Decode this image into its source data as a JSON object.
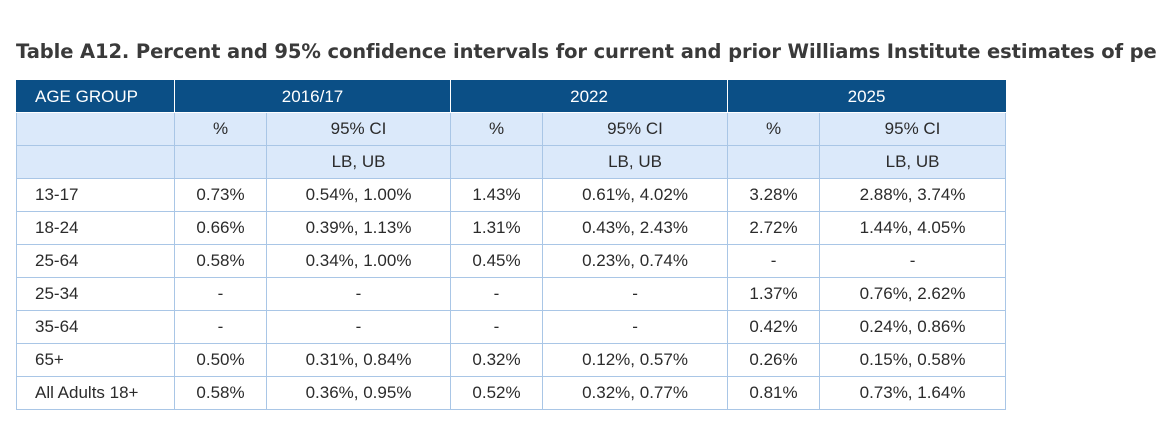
{
  "title": "Table A12. Percent and 95% confidence intervals for current and prior Williams Institute estimates of pe",
  "table": {
    "header": {
      "age_group": "AGE GROUP",
      "periods": [
        "2016/17",
        "2022",
        "2025"
      ]
    },
    "subheader": {
      "percent": "%",
      "ci": "95% CI",
      "bounds": "LB, UB"
    },
    "rows": [
      [
        "13-17",
        "0.73%",
        "0.54%, 1.00%",
        "1.43%",
        "0.61%, 4.02%",
        "3.28%",
        "2.88%, 3.74%"
      ],
      [
        "18-24",
        "0.66%",
        "0.39%, 1.13%",
        "1.31%",
        "0.43%, 2.43%",
        "2.72%",
        "1.44%, 4.05%"
      ],
      [
        "25-64",
        "0.58%",
        "0.34%, 1.00%",
        "0.45%",
        "0.23%, 0.74%",
        "-",
        "-"
      ],
      [
        "25-34",
        "-",
        "-",
        "-",
        "-",
        "1.37%",
        "0.76%, 2.62%"
      ],
      [
        "35-64",
        "-",
        "-",
        "-",
        "-",
        "0.42%",
        "0.24%, 0.86%"
      ],
      [
        "65+",
        "0.50%",
        "0.31%, 0.84%",
        "0.32%",
        "0.12%, 0.57%",
        "0.26%",
        "0.15%, 0.58%"
      ],
      [
        "All Adults 18+",
        "0.58%",
        "0.36%, 0.95%",
        "0.52%",
        "0.32%, 0.77%",
        "0.81%",
        "0.73%, 1.64%"
      ]
    ]
  },
  "colors": {
    "header_bg": "#0b4f86",
    "subheader_bg": "#dbe9fa",
    "border": "#a9c6e6"
  }
}
